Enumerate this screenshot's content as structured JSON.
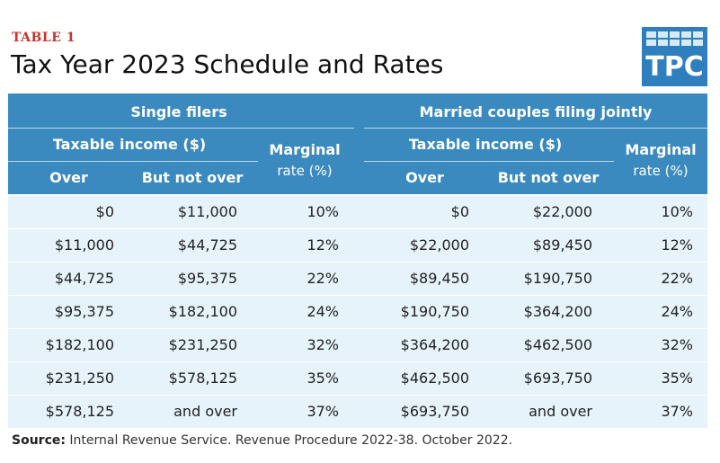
{
  "table_label": "TABLE 1",
  "title": "Tax Year 2023 Schedule and Rates",
  "logo": {
    "text": "TPC"
  },
  "colors": {
    "label_red": "#c8332b",
    "header_blue": "#3a8abf",
    "row_bg": "#e6f3fb",
    "logo_blue": "#2f7fbf"
  },
  "groups": {
    "single": "Single filers",
    "married": "Married couples filing jointly"
  },
  "headers": {
    "taxable_income": "Taxable income ($)",
    "over": "Over",
    "but_not_over": "But not over",
    "marginal_line1": "Marginal",
    "marginal_line2": "rate (%)"
  },
  "rows": [
    {
      "s_over": "$0",
      "s_not": "$11,000",
      "s_rate": "10%",
      "m_over": "$0",
      "m_not": "$22,000",
      "m_rate": "10%"
    },
    {
      "s_over": "$11,000",
      "s_not": "$44,725",
      "s_rate": "12%",
      "m_over": "$22,000",
      "m_not": "$89,450",
      "m_rate": "12%"
    },
    {
      "s_over": "$44,725",
      "s_not": "$95,375",
      "s_rate": "22%",
      "m_over": "$89,450",
      "m_not": "$190,750",
      "m_rate": "22%"
    },
    {
      "s_over": "$95,375",
      "s_not": "$182,100",
      "s_rate": "24%",
      "m_over": "$190,750",
      "m_not": "$364,200",
      "m_rate": "24%"
    },
    {
      "s_over": "$182,100",
      "s_not": "$231,250",
      "s_rate": "32%",
      "m_over": "$364,200",
      "m_not": "$462,500",
      "m_rate": "32%"
    },
    {
      "s_over": "$231,250",
      "s_not": "$578,125",
      "s_rate": "35%",
      "m_over": "$462,500",
      "m_not": "$693,750",
      "m_rate": "35%"
    },
    {
      "s_over": "$578,125",
      "s_not": "and over",
      "s_rate": "37%",
      "m_over": "$693,750",
      "m_not": "and over",
      "m_rate": "37%"
    }
  ],
  "source": {
    "label": "Source:",
    "text": " Internal Revenue Service. Revenue Procedure 2022-38. October 2022."
  }
}
